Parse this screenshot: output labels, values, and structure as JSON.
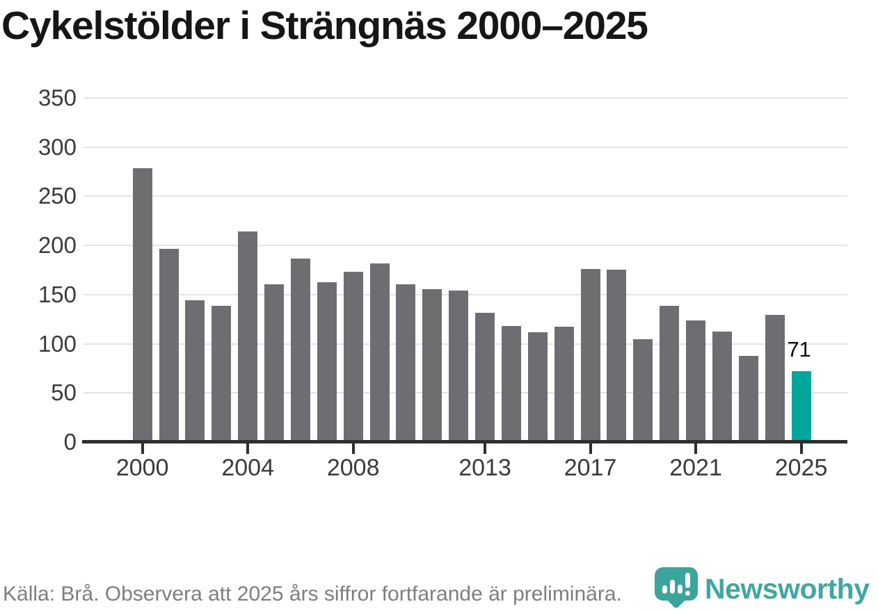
{
  "title": "Cykelstölder i Strängnäs 2000–2025",
  "source_note": "Källa: Brå. Observera att 2025 års siffror fortfarande är preliminära.",
  "logo": {
    "brand": "Newsworthy",
    "icon": "newsworthy-pin-barchart-icon"
  },
  "annotation": {
    "label": "71",
    "year": 2025
  },
  "colors": {
    "bar": "#6e6d71",
    "highlight": "#00a69c",
    "logo_icon_teal": "#3aa49d",
    "logo_text_teal": "#41a79f",
    "grid": "#e3e3e3",
    "axis": "#2e2e2e",
    "title_text": "#161616",
    "tick_text": "#3a3a3a",
    "source_text": "#7e7e7e",
    "annotation_text": "#0c0c0c",
    "background": "#ffffff"
  },
  "chart_data": {
    "type": "bar",
    "title": "Cykelstölder i Strängnäs 2000–2025",
    "xlabel": "",
    "ylabel": "",
    "x": [
      2000,
      2001,
      2002,
      2003,
      2004,
      2005,
      2006,
      2007,
      2008,
      2009,
      2010,
      2011,
      2012,
      2013,
      2014,
      2015,
      2016,
      2017,
      2018,
      2019,
      2020,
      2021,
      2022,
      2023,
      2024,
      2025
    ],
    "values": [
      277,
      195,
      143,
      137,
      213,
      159,
      185,
      161,
      172,
      180,
      159,
      154,
      153,
      130,
      117,
      110,
      116,
      175,
      174,
      103,
      137,
      122,
      111,
      86,
      128,
      71
    ],
    "highlight_year": 2025,
    "data_label": {
      "year": 2025,
      "text": "71"
    },
    "ylim": [
      0,
      350
    ],
    "y_ticks": [
      0,
      50,
      100,
      150,
      200,
      250,
      300,
      350
    ],
    "x_ticks": [
      2000,
      2004,
      2008,
      2013,
      2017,
      2021,
      2025
    ],
    "grid": "horizontal",
    "legend": "none"
  }
}
